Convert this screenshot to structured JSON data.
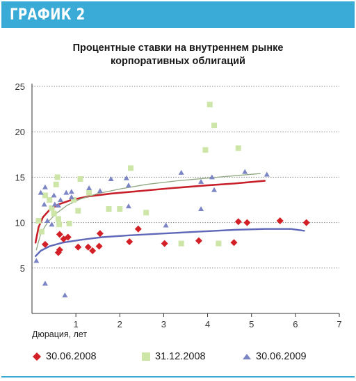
{
  "header": {
    "title": "ГРАФИК 2"
  },
  "chart_data": {
    "type": "scatter",
    "title_lines": [
      "Процентные ставки на внутреннем рынке",
      "корпоративных облигаций"
    ],
    "xlabel": "Дюрация, лет",
    "ylabel": "",
    "xlim": [
      0,
      7
    ],
    "ylim": [
      0,
      25
    ],
    "x_ticks": [
      1,
      2,
      3,
      4,
      5,
      6,
      7
    ],
    "y_ticks": [
      5,
      10,
      15,
      20,
      25
    ],
    "grid": "horizontal dotted",
    "legend_position": "bottom",
    "series": [
      {
        "name": "30.06.2008",
        "marker": "diamond",
        "color": "#d32027",
        "points": [
          [
            0.3,
            7.6
          ],
          [
            0.6,
            6.7
          ],
          [
            0.63,
            7.0
          ],
          [
            0.63,
            8.7
          ],
          [
            0.72,
            8.2
          ],
          [
            0.82,
            8.4
          ],
          [
            1.05,
            7.3
          ],
          [
            1.28,
            7.3
          ],
          [
            1.38,
            6.9
          ],
          [
            1.53,
            7.4
          ],
          [
            1.55,
            8.8
          ],
          [
            2.22,
            7.9
          ],
          [
            2.42,
            9.3
          ],
          [
            3.02,
            7.7
          ],
          [
            3.8,
            8.0
          ],
          [
            4.6,
            7.8
          ],
          [
            4.7,
            10.1
          ],
          [
            4.9,
            10.0
          ],
          [
            5.65,
            10.2
          ],
          [
            6.25,
            10.0
          ]
        ],
        "trend": [
          [
            0.08,
            7.8
          ],
          [
            0.15,
            9.5
          ],
          [
            0.25,
            10.6
          ],
          [
            0.4,
            11.4
          ],
          [
            0.6,
            12.0
          ],
          [
            0.9,
            12.5
          ],
          [
            1.3,
            12.9
          ],
          [
            1.8,
            13.2
          ],
          [
            2.5,
            13.5
          ],
          [
            3.2,
            13.8
          ],
          [
            4.0,
            14.1
          ],
          [
            4.6,
            14.3
          ],
          [
            5.3,
            14.6
          ]
        ]
      },
      {
        "name": "31.12.2008",
        "marker": "square",
        "color": "#cde6a8",
        "points": [
          [
            0.15,
            10.2
          ],
          [
            0.22,
            9.0
          ],
          [
            0.3,
            13.0
          ],
          [
            0.4,
            12.5
          ],
          [
            0.45,
            11.6
          ],
          [
            0.5,
            11.0
          ],
          [
            0.55,
            14.2
          ],
          [
            0.58,
            15.0
          ],
          [
            0.6,
            10.4
          ],
          [
            0.62,
            9.8
          ],
          [
            0.85,
            9.9
          ],
          [
            0.95,
            12.5
          ],
          [
            1.05,
            11.3
          ],
          [
            1.1,
            14.8
          ],
          [
            1.3,
            13.3
          ],
          [
            1.75,
            11.5
          ],
          [
            2.0,
            11.5
          ],
          [
            2.25,
            16.0
          ],
          [
            2.6,
            11.1
          ],
          [
            3.4,
            7.7
          ],
          [
            3.95,
            18.0
          ],
          [
            4.05,
            23.0
          ],
          [
            4.15,
            20.7
          ],
          [
            4.25,
            7.7
          ],
          [
            4.7,
            18.2
          ]
        ],
        "trend": [
          [
            0.1,
            7.0
          ],
          [
            0.2,
            8.8
          ],
          [
            0.35,
            10.0
          ],
          [
            0.55,
            11.0
          ],
          [
            0.8,
            11.9
          ],
          [
            1.1,
            12.6
          ],
          [
            1.5,
            13.2
          ],
          [
            2.0,
            13.7
          ],
          [
            2.6,
            14.2
          ],
          [
            3.3,
            14.6
          ],
          [
            4.0,
            14.9
          ],
          [
            4.7,
            15.2
          ],
          [
            5.2,
            15.4
          ]
        ]
      },
      {
        "name": "30.06.2009",
        "marker": "triangle",
        "color": "#7c85c4",
        "points": [
          [
            0.1,
            5.8
          ],
          [
            0.2,
            13.3
          ],
          [
            0.28,
            12.0
          ],
          [
            0.3,
            13.9
          ],
          [
            0.3,
            3.3
          ],
          [
            0.35,
            10.2
          ],
          [
            0.45,
            9.8
          ],
          [
            0.5,
            13.0
          ],
          [
            0.52,
            12.0
          ],
          [
            0.6,
            11.9
          ],
          [
            0.65,
            12.5
          ],
          [
            0.75,
            2.0
          ],
          [
            0.78,
            13.3
          ],
          [
            0.9,
            12.8
          ],
          [
            0.9,
            13.4
          ],
          [
            1.3,
            13.8
          ],
          [
            1.55,
            13.5
          ],
          [
            1.8,
            14.8
          ],
          [
            2.15,
            14.9
          ],
          [
            2.2,
            14.1
          ],
          [
            2.2,
            11.8
          ],
          [
            3.05,
            9.7
          ],
          [
            3.4,
            15.5
          ],
          [
            3.85,
            11.5
          ],
          [
            3.85,
            14.5
          ],
          [
            4.1,
            15.0
          ],
          [
            4.15,
            13.6
          ],
          [
            4.85,
            15.6
          ],
          [
            5.35,
            15.3
          ]
        ],
        "trend": [
          [
            0.08,
            6.3
          ],
          [
            0.2,
            6.9
          ],
          [
            0.4,
            7.4
          ],
          [
            0.7,
            7.8
          ],
          [
            1.1,
            8.1
          ],
          [
            1.6,
            8.4
          ],
          [
            2.2,
            8.6
          ],
          [
            3.0,
            8.8
          ],
          [
            3.8,
            9.0
          ],
          [
            4.6,
            9.2
          ],
          [
            5.3,
            9.3
          ],
          [
            5.9,
            9.3
          ],
          [
            6.2,
            9.1
          ]
        ]
      }
    ]
  }
}
